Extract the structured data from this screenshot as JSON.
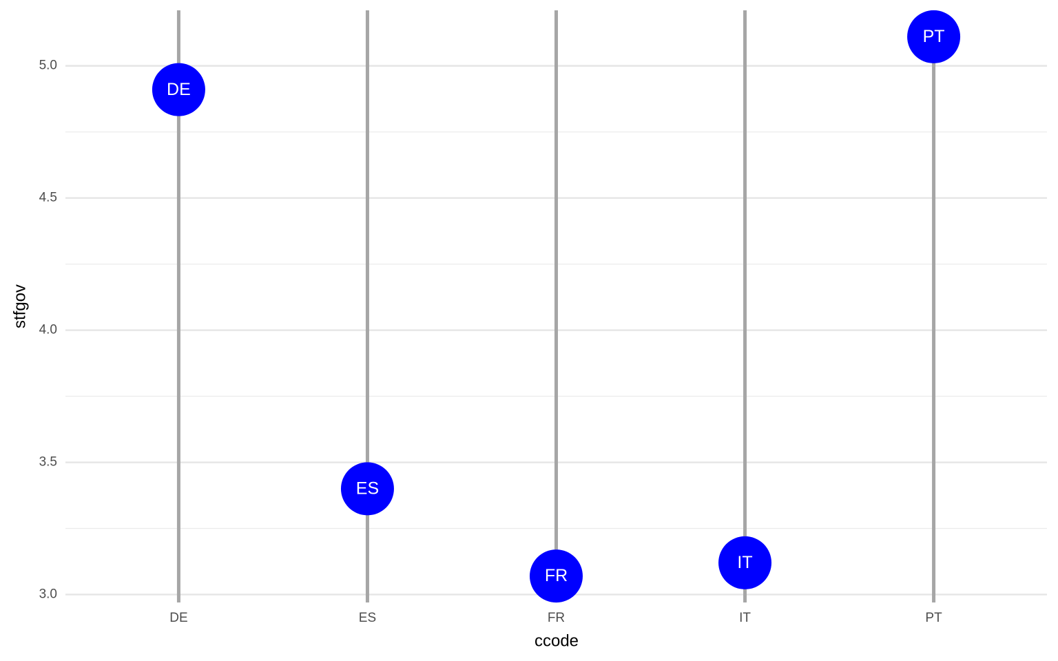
{
  "chart_data": {
    "type": "lollipop",
    "x_label": "ccode",
    "y_label": "stfgov",
    "categories": [
      "DE",
      "ES",
      "FR",
      "IT",
      "PT"
    ],
    "values": [
      4.91,
      3.4,
      3.07,
      3.12,
      5.11
    ],
    "color": "#0000ff",
    "stem_color": "#a6a6a6",
    "ylim": [
      2.97,
      5.21
    ],
    "yticks": [
      {
        "value": 3,
        "label": "3.0"
      },
      {
        "value": 3.5,
        "label": "3.5"
      },
      {
        "value": 4,
        "label": "4.0"
      },
      {
        "value": 4.5,
        "label": "4.5"
      },
      {
        "value": 5,
        "label": "5.0"
      }
    ],
    "minor_yticks": [
      3.25,
      3.75,
      4.25,
      4.75
    ],
    "grid": true
  }
}
